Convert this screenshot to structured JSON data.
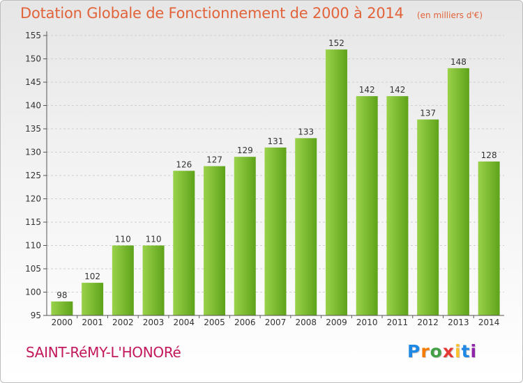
{
  "header": {
    "title": "Dotation Globale de Fonctionnement de 2000 à 2014",
    "unit": "(en milliers d'€)"
  },
  "footer": {
    "commune": "SAINT-RéMY-L'HONORé",
    "logo_text": "Proxiti",
    "logo_colors": [
      "#1e88e5",
      "#f57c00",
      "#43a047",
      "#e53935",
      "#fbc02d",
      "#1e88e5",
      "#8e24aa"
    ]
  },
  "colors": {
    "bar_light": "#9ad24a",
    "bar_dark": "#5ea31a",
    "title": "#e2633a",
    "commune": "#c2185b"
  },
  "chart_data": {
    "type": "bar",
    "title": "Dotation Globale de Fonctionnement de 2000 à 2014",
    "subtitle": "(en milliers d'€)",
    "categories": [
      "2000",
      "2001",
      "2002",
      "2003",
      "2004",
      "2005",
      "2006",
      "2007",
      "2008",
      "2009",
      "2010",
      "2011",
      "2012",
      "2013",
      "2014"
    ],
    "values": [
      98,
      102,
      110,
      110,
      126,
      127,
      129,
      131,
      133,
      152,
      142,
      142,
      137,
      148,
      128
    ],
    "data_labels": [
      "98",
      "102",
      "110",
      "110",
      "126",
      "127",
      "129",
      "131",
      "133",
      "152",
      "142",
      "142",
      "137",
      "148",
      "128"
    ],
    "ylim": [
      95,
      155
    ],
    "yticks": [
      "95",
      "100",
      "105",
      "110",
      "115",
      "120",
      "125",
      "130",
      "135",
      "140",
      "145",
      "150",
      "155"
    ],
    "xlabel": "",
    "ylabel": "",
    "grid": true
  }
}
